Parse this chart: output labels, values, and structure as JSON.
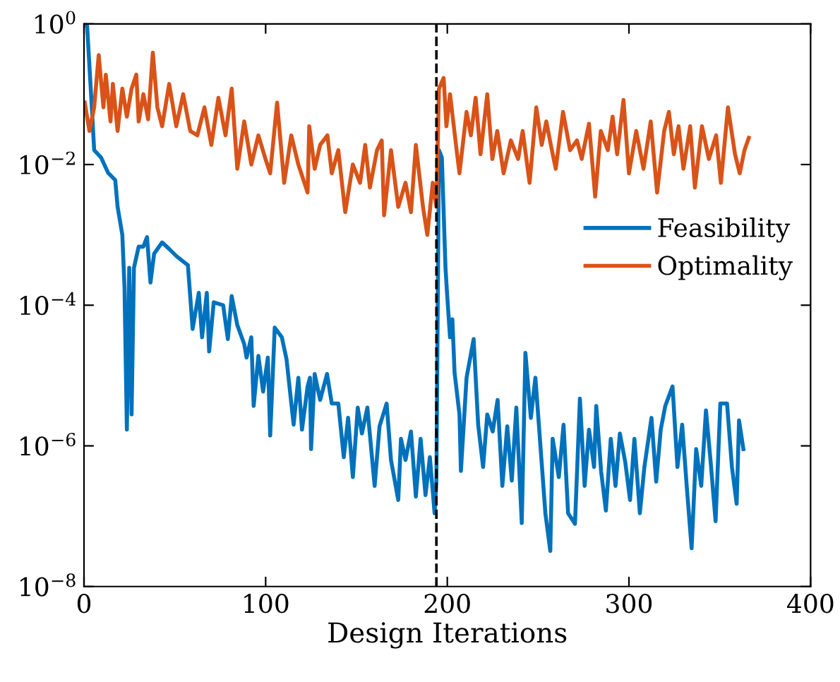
{
  "chart_data": {
    "type": "line",
    "xlabel": "Design Iterations",
    "xlim": [
      0,
      400
    ],
    "xticks": [
      0,
      100,
      200,
      300,
      400
    ],
    "ylim": [
      1e-08,
      1
    ],
    "log": "y",
    "yticks": [
      {
        "value": 1e-08,
        "label": "10$^{−8}$"
      },
      {
        "value": 1e-06,
        "label": "10$^{−6}$"
      },
      {
        "value": 0.0001,
        "label": "10$^{−4}$"
      },
      {
        "value": 0.01,
        "label": "10$^{−2}$"
      },
      {
        "value": 1,
        "label": "10$^{0}$"
      }
    ],
    "grid": false,
    "legend": "right",
    "line_style": "solid",
    "marker": "none",
    "ref_lines": [
      {
        "axis": "x",
        "value": 194,
        "color": "#000000",
        "line_style": "dashed"
      }
    ],
    "series": [
      {
        "name": "Feasibility",
        "color": "#0072bd",
        "x": [
          0,
          1.7,
          4.3,
          5.6,
          9.4,
          13.3,
          17.2,
          18.5,
          21.1,
          22.3,
          23.6,
          24.9,
          26.2,
          27.5,
          30.1,
          32.7,
          34.7,
          36.6,
          38.6,
          43.0,
          46.9,
          50.8,
          57.2,
          59.8,
          63.2,
          65.0,
          67.6,
          68.9,
          71.4,
          76.6,
          79.2,
          81.3,
          84.4,
          88.2,
          89.5,
          92.1,
          93.4,
          96.0,
          98.6,
          101.2,
          102.5,
          105.0,
          108.9,
          111.5,
          115.4,
          118.0,
          120.0,
          123.1,
          124.4,
          125,
          127,
          130,
          133.8,
          136.4,
          140,
          143,
          145.4,
          148,
          150.7,
          153,
          156,
          160,
          162.7,
          166.6,
          169,
          173,
          174.5,
          177,
          180,
          182.7,
          185.3,
          188,
          190.4,
          193,
          194,
          195.4,
          197,
          199,
          200,
          201.5,
          202.8,
          204,
          206.7,
          207.5,
          210.6,
          214.5,
          217,
          219.7,
          222,
          225,
          227.7,
          230.3,
          233,
          235.5,
          238,
          241,
          243,
          246,
          248.5,
          254,
          256.7,
          258,
          261.4,
          264,
          266.5,
          270.3,
          273,
          275.6,
          278,
          280.8,
          282,
          284.7,
          287.3,
          290,
          292.6,
          295,
          298,
          300.6,
          303,
          306,
          308.5,
          312.4,
          315,
          317.5,
          320,
          324,
          326.7,
          329.3,
          332,
          334.5,
          337,
          339.8,
          342.4,
          345,
          347.7,
          350.3,
          354,
          356.7,
          359.3,
          360.6,
          363
        ],
        "values": [
          0.95,
          0.95,
          0.065,
          0.016,
          0.0126,
          0.0076,
          0.006,
          0.0025,
          0.001,
          0.00018,
          1.7e-06,
          0.00034,
          2.8e-06,
          0.00034,
          0.00068,
          0.00068,
          0.00093,
          0.00021,
          0.00054,
          0.00078,
          0.00063,
          0.0005,
          0.00037,
          4.6e-05,
          0.00015,
          3.5e-05,
          0.00015,
          2.2e-05,
          0.00011,
          0.0001,
          3.3e-05,
          0.000135,
          5.2e-05,
          2.8e-05,
          1.8e-05,
          3.5e-05,
          3.7e-06,
          1.9e-05,
          5.9e-06,
          1.8e-05,
          1.4e-06,
          4.8e-05,
          3.5e-05,
          1.7e-05,
          2e-06,
          9.3e-06,
          1.7e-06,
          7e-06,
          9.3e-06,
          9e-07,
          1.05e-05,
          4.5e-06,
          1.05e-05,
          4e-06,
          4e-06,
          6.9e-07,
          2.5e-06,
          3.6e-07,
          3.5e-06,
          1.5e-06,
          3.5e-06,
          2.7e-07,
          1.9e-06,
          4e-06,
          6.3e-07,
          1.7e-07,
          1.26e-06,
          6.3e-07,
          1.6e-06,
          1.9e-07,
          1.26e-06,
          2e-07,
          6.9e-07,
          1.1e-07,
          3.2e-07,
          0.016,
          0.0126,
          0.00034,
          0.00013,
          3.5e-05,
          6.3e-05,
          1.1e-05,
          2.8e-06,
          4.4e-07,
          9.3e-06,
          3.3e-05,
          2e-06,
          5e-07,
          2.8e-06,
          1.6e-06,
          4.5e-06,
          2.7e-07,
          1.9e-06,
          3.2e-07,
          3.5e-06,
          8e-08,
          2.1e-05,
          2.5e-06,
          9.3e-06,
          1.1e-07,
          3.2e-08,
          1.26e-06,
          3.6e-07,
          2e-06,
          1.1e-07,
          7.8e-08,
          4.7e-06,
          2.7e-07,
          1.7e-06,
          5e-07,
          3.7e-06,
          4.3e-07,
          1.2e-07,
          1.26e-06,
          2.7e-07,
          1.5e-06,
          5.8e-07,
          1.7e-07,
          1.26e-06,
          1.1e-07,
          5e-07,
          2.5e-06,
          3.1e-07,
          1.7e-06,
          3.7e-06,
          7e-06,
          5e-07,
          2e-06,
          2.3e-07,
          3.5e-08,
          9e-07,
          2.7e-07,
          3.2e-06,
          5.8e-07,
          8.5e-08,
          4e-06,
          4e-06,
          5e-07,
          1.5e-07,
          2.3e-06,
          9e-07
        ]
      },
      {
        "name": "Optimality",
        "color": "#d95319",
        "x": [
          0.4,
          3.0,
          5.6,
          8.1,
          10.7,
          12.0,
          14.6,
          15.9,
          18.5,
          21.1,
          23.6,
          26.2,
          28.8,
          30.1,
          32.7,
          35.3,
          37.9,
          40.4,
          43.0,
          46.9,
          50.8,
          54.6,
          58.5,
          62.4,
          66.3,
          70.1,
          74.0,
          77.9,
          81.3,
          84.4,
          88.2,
          92.1,
          96.0,
          99.9,
          102.5,
          106.3,
          110.2,
          114.1,
          118.0,
          123.1,
          124,
          127,
          130,
          134,
          136.4,
          140,
          143.8,
          148,
          152,
          154.8,
          157.4,
          161.3,
          163.9,
          165.2,
          169,
          173,
          177,
          180,
          182.7,
          186.6,
          189,
          192,
          194,
          195.4,
          198,
          199.5,
          201.5,
          205.4,
          206.7,
          210.6,
          213,
          215.6,
          218.3,
          222,
          224.8,
          227.5,
          231,
          235,
          239,
          241.5,
          245.3,
          249,
          252,
          254.5,
          257,
          259.7,
          263.7,
          267.6,
          271.4,
          274,
          278,
          281.4,
          284.5,
          288.4,
          291,
          293.5,
          297,
          300,
          304,
          308,
          312,
          315.5,
          319.4,
          322,
          324.7,
          327.3,
          330,
          333.7,
          336.3,
          340.2,
          344,
          348,
          350.6,
          354.5,
          358.4,
          361,
          363.6,
          366
        ],
        "values": [
          0.076,
          0.03,
          0.065,
          0.36,
          0.065,
          0.19,
          0.041,
          0.14,
          0.03,
          0.12,
          0.048,
          0.12,
          0.19,
          0.041,
          0.1,
          0.044,
          0.39,
          0.065,
          0.035,
          0.14,
          0.035,
          0.1,
          0.03,
          0.026,
          0.065,
          0.019,
          0.089,
          0.026,
          0.12,
          0.0087,
          0.041,
          0.01,
          0.026,
          0.012,
          0.0075,
          0.076,
          0.0055,
          0.026,
          0.01,
          0.004,
          0.035,
          0.0087,
          0.019,
          0.026,
          0.0075,
          0.016,
          0.0021,
          0.01,
          0.0055,
          0.019,
          0.0047,
          0.016,
          0.022,
          0.0019,
          0.016,
          0.0025,
          0.0055,
          0.0021,
          0.019,
          0.0025,
          0.001,
          0.0055,
          0.0025,
          0.12,
          0.17,
          0.035,
          0.1,
          0.014,
          0.0075,
          0.056,
          0.026,
          0.089,
          0.014,
          0.1,
          0.012,
          0.03,
          0.0075,
          0.022,
          0.012,
          0.03,
          0.0055,
          0.065,
          0.019,
          0.041,
          0.019,
          0.0087,
          0.056,
          0.016,
          0.022,
          0.012,
          0.038,
          0.0035,
          0.03,
          0.016,
          0.048,
          0.014,
          0.083,
          0.0075,
          0.03,
          0.0087,
          0.041,
          0.004,
          0.03,
          0.056,
          0.014,
          0.035,
          0.0087,
          0.035,
          0.0047,
          0.035,
          0.012,
          0.026,
          0.0055,
          0.065,
          0.014,
          0.0075,
          0.016,
          0.024
        ]
      }
    ]
  }
}
